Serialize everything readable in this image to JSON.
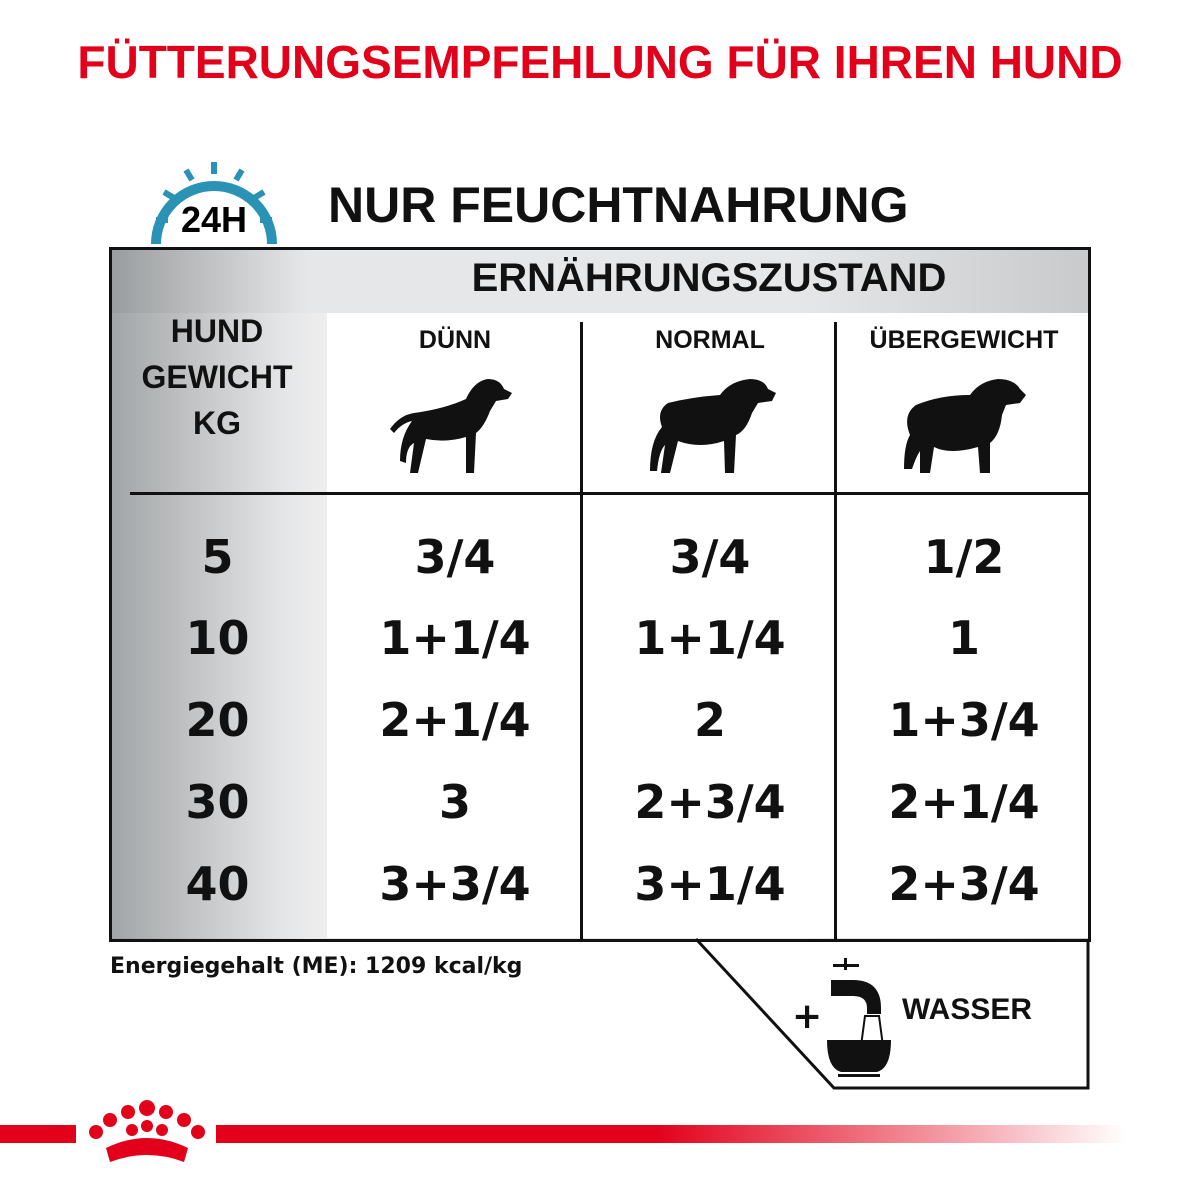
{
  "title": "FÜTTERUNGSEMPFEHLUNG FÜR IHREN HUND",
  "clock_icon_label": "24H",
  "subtitle": "NUR FEUCHTNAHRUNG",
  "table": {
    "group_header": "ERNÄHRUNGSZUSTAND",
    "row_header": [
      "HUND",
      "GEWICHT",
      "KG"
    ],
    "columns": [
      {
        "label": "DÜNN",
        "icon": "thin-dog-icon"
      },
      {
        "label": "NORMAL",
        "icon": "normal-dog-icon"
      },
      {
        "label": "ÜBERGEWICHT",
        "icon": "overweight-dog-icon"
      }
    ],
    "rows": [
      {
        "weight": "5",
        "values": [
          "3/4",
          "3/4",
          "1/2"
        ]
      },
      {
        "weight": "10",
        "values": [
          "1+1/4",
          "1+1/4",
          "1"
        ]
      },
      {
        "weight": "20",
        "values": [
          "2+1/4",
          "2",
          "1+3/4"
        ]
      },
      {
        "weight": "30",
        "values": [
          "3",
          "2+3/4",
          "2+1/4"
        ]
      },
      {
        "weight": "40",
        "values": [
          "3+3/4",
          "3+1/4",
          "2+3/4"
        ]
      }
    ]
  },
  "energy": "Energiegehalt (ME): 1209 kcal/kg",
  "water": {
    "plus": "+",
    "label": "WASSER",
    "icon": "water-tap-bowl-icon"
  },
  "logo": {
    "name": "royal-canin-crown-logo"
  },
  "colors": {
    "brand_red": "#e2001a",
    "clock_blue": "#2a93b5"
  }
}
